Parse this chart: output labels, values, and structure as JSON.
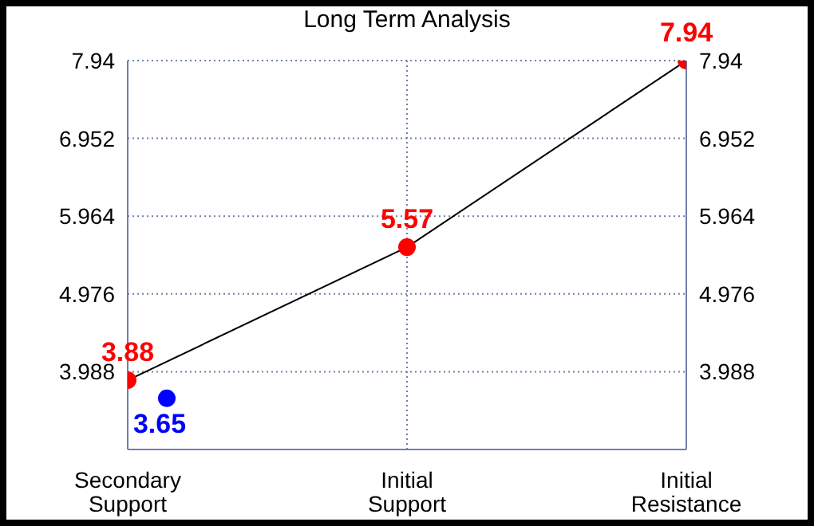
{
  "chart_data": {
    "type": "line",
    "title": "Long Term Analysis",
    "categories": [
      "Secondary Support",
      "Initial Support",
      "Initial Resistance"
    ],
    "ylim": [
      3.0,
      7.94
    ],
    "yticks": [
      3.988,
      4.976,
      5.964,
      6.952,
      7.94
    ],
    "y2lim": [
      3.0,
      7.94
    ],
    "y2ticks": [
      3.988,
      4.976,
      5.964,
      6.952,
      7.94
    ],
    "grid": true,
    "marker": "circle",
    "data_labels": true,
    "series": [
      {
        "color": "#000000",
        "colors": [
          "#ff0000",
          "#ff0000",
          "#ff0000"
        ],
        "values": [
          3.88,
          5.57,
          7.94
        ]
      },
      {
        "type": "scatter",
        "color": "#0000ff",
        "x": [
          "Secondary Support"
        ],
        "values": [
          3.65
        ]
      }
    ]
  }
}
